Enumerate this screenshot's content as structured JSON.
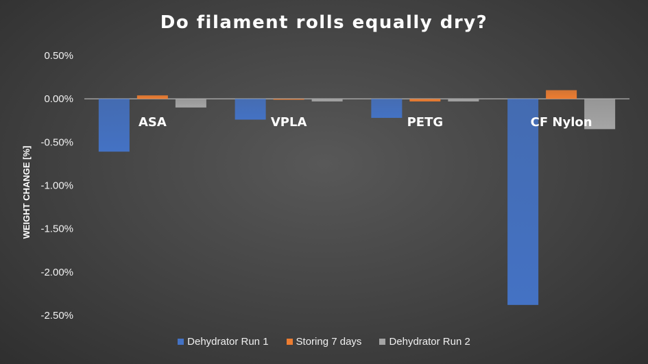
{
  "chart_data": {
    "type": "bar",
    "title": "Do filament rolls equally dry?",
    "ylabel": "WEIGHT CHANGE [%]",
    "xlabel": "",
    "categories": [
      "ASA",
      "VPLA",
      "PETG",
      "CF Nylon"
    ],
    "series": [
      {
        "name": "Dehydrator Run 1",
        "values": [
          -0.61,
          -0.24,
          -0.22,
          -2.38
        ],
        "color": "#4472c4"
      },
      {
        "name": "Storing 7 days",
        "values": [
          0.04,
          -0.01,
          -0.03,
          0.1
        ],
        "color": "#ed7d31"
      },
      {
        "name": "Dehydrator Run 2",
        "values": [
          -0.1,
          -0.03,
          -0.03,
          -0.35
        ],
        "color": "#a5a5a5"
      }
    ],
    "ylim": [
      -2.5,
      0.5
    ],
    "yticks": [
      "0.50%",
      "0.00%",
      "-0.50%",
      "-1.00%",
      "-1.50%",
      "-2.00%",
      "-2.50%"
    ],
    "ytick_values": [
      0.5,
      0.0,
      -0.5,
      -1.0,
      -1.5,
      -2.0,
      -2.5
    ],
    "grid": false,
    "legend": "bottom"
  }
}
